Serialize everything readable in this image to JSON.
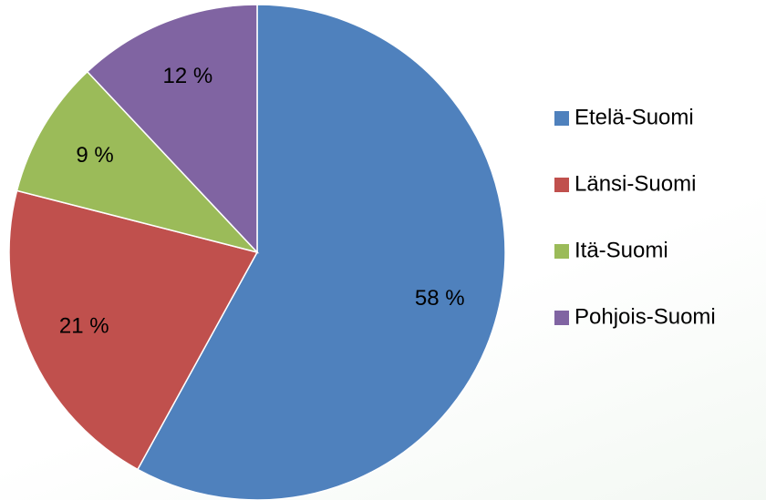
{
  "chart_data": {
    "type": "pie",
    "categories": [
      "Etelä-Suomi",
      "Länsi-Suomi",
      "Itä-Suomi",
      "Pohjois-Suomi"
    ],
    "values": [
      58,
      21,
      9,
      12
    ],
    "value_labels": [
      "58 %",
      "21 %",
      "9 %",
      "12 %"
    ],
    "colors": [
      "#4f81bd",
      "#c0504d",
      "#9bbb59",
      "#8064a2"
    ],
    "legend": "right"
  }
}
